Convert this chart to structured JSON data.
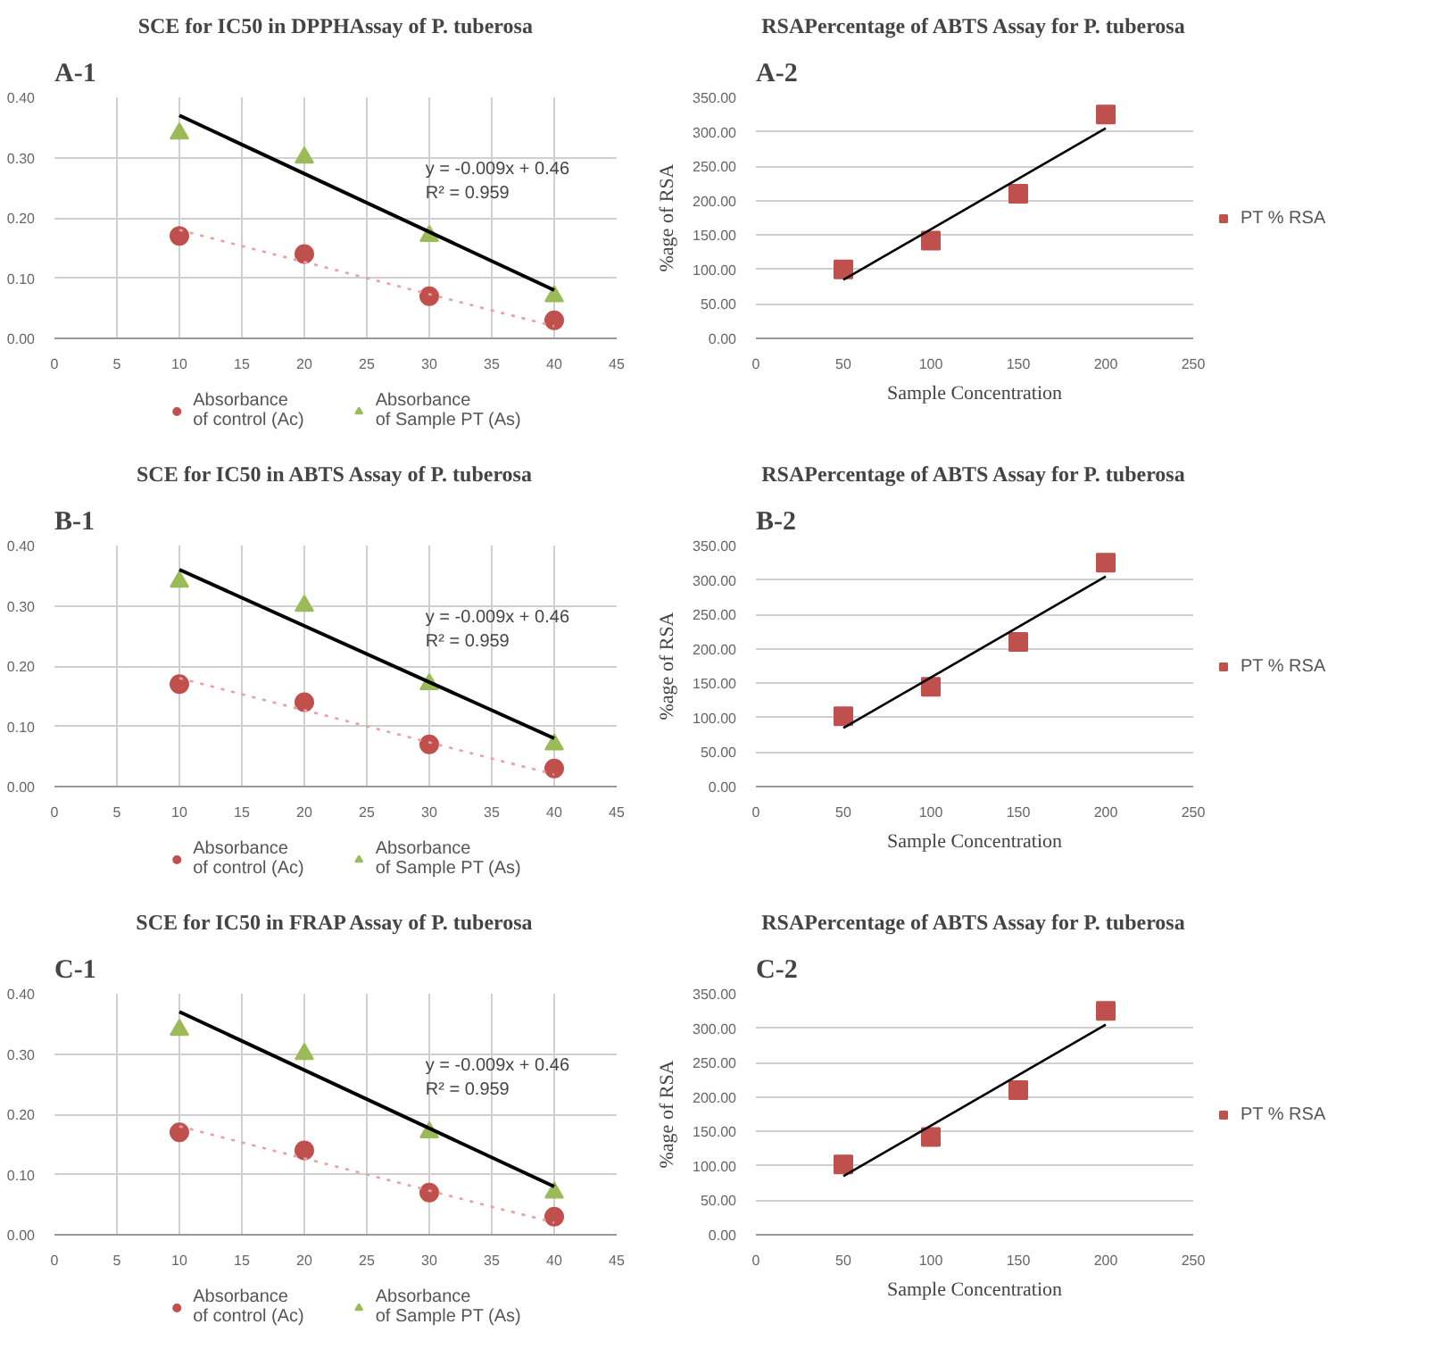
{
  "chart_data": [
    {
      "type": "scatter",
      "title": "SCE for IC50 in DPPHAssay of P. tuberosa",
      "annotations": [
        "A-1",
        "y = -0.009x + 0.46",
        "R² = 0.959"
      ],
      "x": [
        10,
        20,
        30,
        40
      ],
      "series": [
        {
          "name": "Absorbance\nof control (Ac)",
          "color": "#c0504d",
          "marker": "circle",
          "values": [
            0.17,
            0.14,
            0.07,
            0.03
          ]
        },
        {
          "name": "Absorbance\nof Sample PT (As)",
          "color": "#9bbb59",
          "marker": "triangle",
          "values": [
            0.34,
            0.3,
            0.17,
            0.07
          ]
        },
        {
          "type": "line",
          "color": "#e8a0a0",
          "line_style": "dotted",
          "x": [
            10,
            40
          ],
          "values": [
            0.18,
            0.02
          ]
        },
        {
          "type": "line",
          "color": "#000000",
          "line_style": "solid",
          "x": [
            10,
            40
          ],
          "values": [
            0.37,
            0.08
          ]
        }
      ],
      "xlim": [
        0,
        45
      ],
      "xticks": [
        0,
        5,
        10,
        15,
        20,
        25,
        30,
        35,
        40,
        45
      ],
      "ylim": [
        0,
        0.4
      ],
      "yticks": [
        {
          "value": 0,
          "label": "0.00"
        },
        {
          "value": 0.1,
          "label": "0.10"
        },
        {
          "value": 0.2,
          "label": "0.20"
        },
        {
          "value": 0.3,
          "label": "0.30"
        },
        {
          "value": 0.4,
          "label": "0.40"
        }
      ],
      "grid": true,
      "legend": "bottom"
    },
    {
      "type": "scatter",
      "title": "RSAPercentage of ABTS Assay for P. tuberosa",
      "annotations": [
        "A-2"
      ],
      "xlabel": "Sample Concentration",
      "ylabel": "%age of RSA",
      "x": [
        50,
        100,
        150,
        200
      ],
      "series": [
        {
          "name": "PT % RSA",
          "color": "#c0504d",
          "marker": "square",
          "values": [
            100,
            142,
            210,
            325
          ]
        },
        {
          "type": "line",
          "color": "#000000",
          "line_style": "solid",
          "x": [
            50,
            200
          ],
          "values": [
            85,
            305
          ]
        }
      ],
      "xlim": [
        0,
        250
      ],
      "xticks": [
        0,
        50,
        100,
        150,
        200,
        250
      ],
      "ylim": [
        0,
        350
      ],
      "yticks": [
        {
          "value": 0,
          "label": "0.00"
        },
        {
          "value": 50,
          "label": "50.00"
        },
        {
          "value": 100,
          "label": "100.00"
        },
        {
          "value": 150,
          "label": "150.00"
        },
        {
          "value": 200,
          "label": "200.00"
        },
        {
          "value": 250,
          "label": "250.00"
        },
        {
          "value": 300,
          "label": "300.00"
        },
        {
          "value": 350,
          "label": "350.00"
        }
      ],
      "grid": "y",
      "legend": "right"
    },
    {
      "type": "scatter",
      "title": "SCE for IC50 in ABTS Assay of P. tuberosa",
      "annotations": [
        "B-1",
        "y = -0.009x + 0.46",
        "R² = 0.959"
      ],
      "x": [
        10,
        20,
        30,
        40
      ],
      "series": [
        {
          "name": "Absorbance\nof control (Ac)",
          "color": "#c0504d",
          "marker": "circle",
          "values": [
            0.17,
            0.14,
            0.07,
            0.03
          ]
        },
        {
          "name": "Absorbance\nof Sample PT (As)",
          "color": "#9bbb59",
          "marker": "triangle",
          "values": [
            0.34,
            0.3,
            0.17,
            0.07
          ]
        },
        {
          "type": "line",
          "color": "#e8a0a0",
          "line_style": "dotted",
          "x": [
            10,
            40
          ],
          "values": [
            0.18,
            0.02
          ]
        },
        {
          "type": "line",
          "color": "#000000",
          "line_style": "solid",
          "x": [
            10,
            40
          ],
          "values": [
            0.36,
            0.08
          ]
        }
      ],
      "xlim": [
        0,
        45
      ],
      "xticks": [
        0,
        5,
        10,
        15,
        20,
        25,
        30,
        35,
        40,
        45
      ],
      "ylim": [
        0,
        0.4
      ],
      "yticks": [
        {
          "value": 0,
          "label": "0.00"
        },
        {
          "value": 0.1,
          "label": "0.10"
        },
        {
          "value": 0.2,
          "label": "0.20"
        },
        {
          "value": 0.3,
          "label": "0.30"
        },
        {
          "value": 0.4,
          "label": "0.40"
        }
      ],
      "grid": true,
      "legend": "bottom"
    },
    {
      "type": "scatter",
      "title": "RSAPercentage of ABTS Assay for P. tuberosa",
      "annotations": [
        "B-2"
      ],
      "xlabel": "Sample Concentration",
      "ylabel": "%age of RSA",
      "x": [
        50,
        100,
        150,
        200
      ],
      "series": [
        {
          "name": "PT % RSA",
          "color": "#c0504d",
          "marker": "square",
          "values": [
            102,
            145,
            210,
            325
          ]
        },
        {
          "type": "line",
          "color": "#000000",
          "line_style": "solid",
          "x": [
            50,
            200
          ],
          "values": [
            85,
            305
          ]
        }
      ],
      "xlim": [
        0,
        250
      ],
      "xticks": [
        0,
        50,
        100,
        150,
        200,
        250
      ],
      "ylim": [
        0,
        350
      ],
      "yticks": [
        {
          "value": 0,
          "label": "0.00"
        },
        {
          "value": 50,
          "label": "50.00"
        },
        {
          "value": 100,
          "label": "100.00"
        },
        {
          "value": 150,
          "label": "150.00"
        },
        {
          "value": 200,
          "label": "200.00"
        },
        {
          "value": 250,
          "label": "250.00"
        },
        {
          "value": 300,
          "label": "300.00"
        },
        {
          "value": 350,
          "label": "350.00"
        }
      ],
      "grid": "y",
      "legend": "right"
    },
    {
      "type": "scatter",
      "title": "SCE for IC50 in FRAP Assay of P. tuberosa",
      "annotations": [
        "C-1",
        "y = -0.009x + 0.46",
        "R² = 0.959"
      ],
      "x": [
        10,
        20,
        30,
        40
      ],
      "series": [
        {
          "name": "Absorbance\nof control (Ac)",
          "color": "#c0504d",
          "marker": "circle",
          "values": [
            0.17,
            0.14,
            0.07,
            0.03
          ]
        },
        {
          "name": "Absorbance\nof Sample PT (As)",
          "color": "#9bbb59",
          "marker": "triangle",
          "values": [
            0.34,
            0.3,
            0.17,
            0.07
          ]
        },
        {
          "type": "line",
          "color": "#e8a0a0",
          "line_style": "dotted",
          "x": [
            10,
            40
          ],
          "values": [
            0.18,
            0.02
          ]
        },
        {
          "type": "line",
          "color": "#000000",
          "line_style": "solid",
          "x": [
            10,
            40
          ],
          "values": [
            0.37,
            0.08
          ]
        }
      ],
      "xlim": [
        0,
        45
      ],
      "xticks": [
        0,
        5,
        10,
        15,
        20,
        25,
        30,
        35,
        40,
        45
      ],
      "ylim": [
        0,
        0.4
      ],
      "yticks": [
        {
          "value": 0,
          "label": "0.00"
        },
        {
          "value": 0.1,
          "label": "0.10"
        },
        {
          "value": 0.2,
          "label": "0.20"
        },
        {
          "value": 0.3,
          "label": "0.30"
        },
        {
          "value": 0.4,
          "label": "0.40"
        }
      ],
      "grid": true,
      "legend": "bottom"
    },
    {
      "type": "scatter",
      "title": "RSAPercentage of ABTS Assay for P. tuberosa",
      "annotations": [
        "C-2"
      ],
      "xlabel": "Sample Concentration",
      "ylabel": "%age of RSA",
      "x": [
        50,
        100,
        150,
        200
      ],
      "series": [
        {
          "name": "PT % RSA",
          "color": "#c0504d",
          "marker": "square",
          "values": [
            102,
            142,
            210,
            325
          ]
        },
        {
          "type": "line",
          "color": "#000000",
          "line_style": "solid",
          "x": [
            50,
            200
          ],
          "values": [
            85,
            305
          ]
        }
      ],
      "xlim": [
        0,
        250
      ],
      "xticks": [
        0,
        50,
        100,
        150,
        200,
        250
      ],
      "ylim": [
        0,
        350
      ],
      "yticks": [
        {
          "value": 0,
          "label": "0.00"
        },
        {
          "value": 50,
          "label": "50.00"
        },
        {
          "value": 100,
          "label": "100.00"
        },
        {
          "value": 150,
          "label": "150.00"
        },
        {
          "value": 200,
          "label": "200.00"
        },
        {
          "value": 250,
          "label": "250.00"
        },
        {
          "value": 300,
          "label": "300.00"
        },
        {
          "value": 350,
          "label": "350.00"
        }
      ],
      "grid": "y",
      "legend": "right"
    }
  ]
}
